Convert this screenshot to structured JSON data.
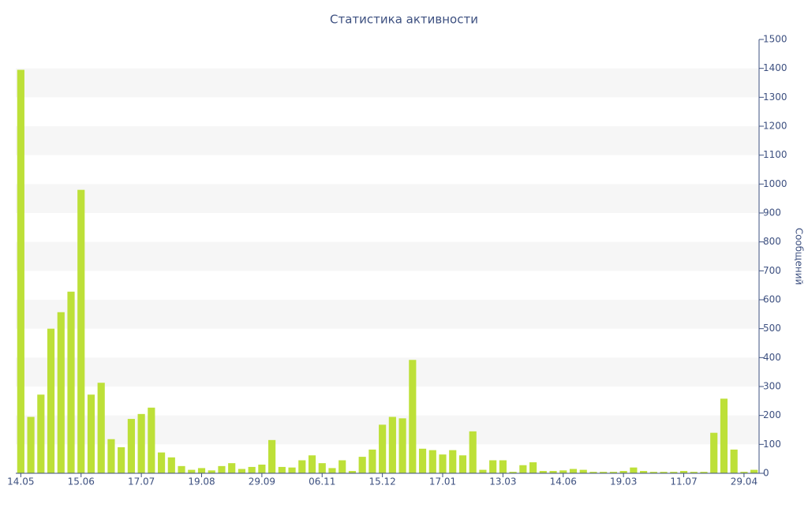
{
  "chart_data": {
    "type": "bar",
    "title": "Статистика активности",
    "y_label": "Сообщений",
    "categories": [
      "14.05",
      null,
      null,
      null,
      null,
      null,
      "15.06",
      null,
      null,
      null,
      null,
      null,
      "17.07",
      null,
      null,
      null,
      null,
      null,
      "19.08",
      null,
      null,
      null,
      null,
      null,
      "29.09",
      null,
      null,
      null,
      null,
      null,
      "06.11",
      null,
      null,
      null,
      null,
      null,
      "15.12",
      null,
      null,
      null,
      null,
      null,
      "17.01",
      null,
      null,
      null,
      null,
      null,
      "13.03",
      null,
      null,
      null,
      null,
      null,
      "14.06",
      null,
      null,
      null,
      null,
      null,
      "19.03",
      null,
      null,
      null,
      null,
      null,
      "11.07",
      null,
      null,
      null,
      null,
      null,
      "29.04",
      null
    ],
    "values": [
      1395,
      195,
      272,
      500,
      557,
      628,
      980,
      272,
      313,
      118,
      90,
      188,
      205,
      227,
      72,
      55,
      25,
      12,
      18,
      10,
      25,
      35,
      15,
      22,
      30,
      115,
      22,
      20,
      45,
      62,
      35,
      18,
      45,
      8,
      57,
      82,
      168,
      195,
      190,
      392,
      85,
      80,
      65,
      80,
      62,
      145,
      12,
      45,
      45,
      5,
      28,
      38,
      8,
      8,
      10,
      15,
      12,
      5,
      5,
      5,
      8,
      20,
      8,
      5,
      5,
      5,
      8,
      5,
      5,
      140,
      258,
      82,
      5,
      12
    ],
    "color": "#bde038",
    "ylim": [
      0,
      1500
    ],
    "yticks": [
      0,
      100,
      200,
      300,
      400,
      500,
      600,
      700,
      800,
      900,
      1000,
      1100,
      1200,
      1300,
      1400,
      1500
    ],
    "grid": "bands",
    "y_axis_side": "right"
  }
}
